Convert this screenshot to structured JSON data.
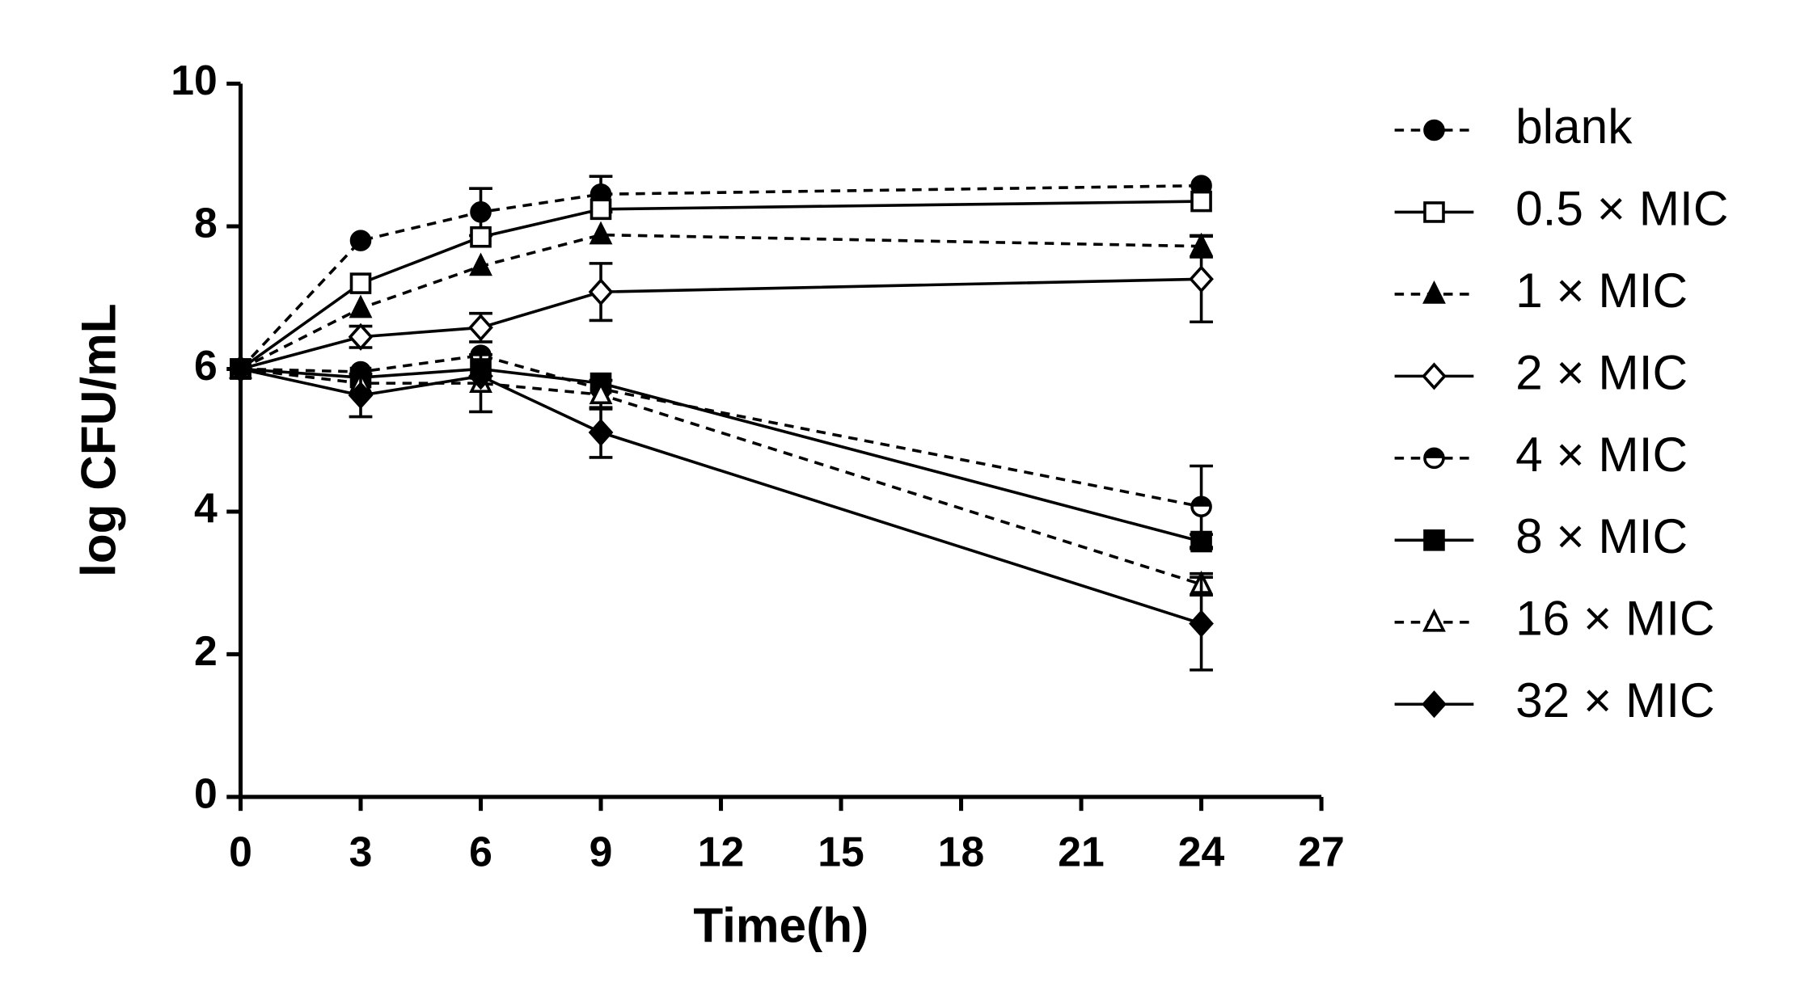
{
  "chart_data": {
    "type": "line",
    "x_label": "Time(h)",
    "y_label": "log CFU/mL",
    "x": [
      0,
      3,
      6,
      9,
      24
    ],
    "xlim": [
      0,
      27
    ],
    "xticks": [
      0,
      3,
      6,
      9,
      12,
      15,
      18,
      21,
      24,
      27
    ],
    "ylim": [
      0,
      10
    ],
    "yticks": [
      0,
      2,
      4,
      6,
      8,
      10
    ],
    "legend": "right",
    "series": [
      {
        "name": "blank",
        "color": "#000000",
        "marker": "circle",
        "dash": true,
        "values": [
          6.0,
          7.8,
          8.2,
          8.45,
          8.57
        ],
        "errors": [
          0,
          0,
          0.33,
          0.25,
          0
        ]
      },
      {
        "name": "0.5 × MIC",
        "color": "#000000",
        "marker": "square-open",
        "dash": false,
        "values": [
          6.0,
          7.2,
          7.85,
          8.24,
          8.35
        ],
        "errors": [
          0,
          0,
          0,
          0,
          0
        ]
      },
      {
        "name": "1 × MIC",
        "color": "#000000",
        "marker": "triangle",
        "dash": true,
        "values": [
          6.0,
          6.85,
          7.44,
          7.88,
          7.72
        ],
        "errors": [
          0,
          0,
          0,
          0,
          0.15
        ]
      },
      {
        "name": "2 × MIC",
        "color": "#000000",
        "marker": "diamond-open",
        "dash": false,
        "values": [
          6.0,
          6.45,
          6.58,
          7.08,
          7.26
        ],
        "errors": [
          0,
          0.15,
          0.2,
          0.4,
          0.6
        ]
      },
      {
        "name": "4 × MIC",
        "color": "#000000",
        "marker": "circle-half",
        "dash": true,
        "values": [
          6.0,
          5.96,
          6.19,
          5.72,
          4.07
        ],
        "errors": [
          0,
          0,
          0,
          0,
          0.57
        ]
      },
      {
        "name": "8 × MIC",
        "color": "#000000",
        "marker": "square",
        "dash": false,
        "values": [
          6.0,
          5.88,
          6.0,
          5.8,
          3.58
        ],
        "errors": [
          0,
          0,
          0,
          0,
          0.1
        ]
      },
      {
        "name": "16 × MIC",
        "color": "#000000",
        "marker": "triangle-open",
        "dash": true,
        "values": [
          6.0,
          5.8,
          5.8,
          5.64,
          2.98
        ],
        "errors": [
          0,
          0,
          0.4,
          0.2,
          0.15
        ]
      },
      {
        "name": "32 × MIC",
        "color": "#000000",
        "marker": "diamond",
        "dash": false,
        "values": [
          6.0,
          5.63,
          5.9,
          5.11,
          2.43
        ],
        "errors": [
          0,
          0.3,
          0,
          0.35,
          0.65
        ]
      }
    ]
  }
}
